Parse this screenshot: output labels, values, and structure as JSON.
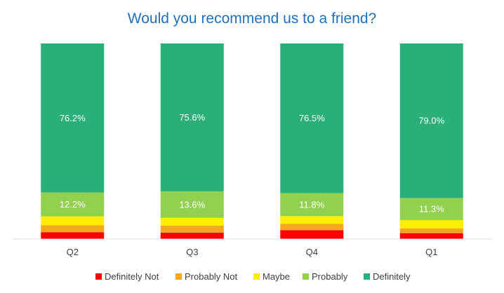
{
  "chart_data": {
    "type": "bar",
    "stacked": true,
    "normalized": true,
    "title": "Would you recommend us to a friend?",
    "categories": [
      "Q2",
      "Q3",
      "Q4",
      "Q1"
    ],
    "series": [
      {
        "name": "Definitely Not",
        "color": "#ff0000",
        "values": [
          3.5,
          3.3,
          4.5,
          3.0
        ]
      },
      {
        "name": "Probably Not",
        "color": "#f5a623",
        "values": [
          3.5,
          3.5,
          3.2,
          2.4
        ]
      },
      {
        "name": "Maybe",
        "color": "#ffee00",
        "values": [
          4.6,
          4.0,
          4.0,
          4.3
        ]
      },
      {
        "name": "Probably",
        "color": "#92d050",
        "values": [
          12.2,
          13.6,
          11.8,
          11.3
        ]
      },
      {
        "name": "Definitely",
        "color": "#2aaf78",
        "values": [
          76.2,
          75.6,
          76.5,
          79.0
        ]
      }
    ],
    "data_labels": {
      "Probably": [
        "12.2%",
        "13.6%",
        "11.8%",
        "11.3%"
      ],
      "Definitely": [
        "76.2%",
        "75.6%",
        "76.5%",
        "79.0%"
      ]
    },
    "ylim": [
      0,
      100
    ],
    "grid": false,
    "legend_position": "bottom",
    "title_color": "#1f6fbf"
  }
}
